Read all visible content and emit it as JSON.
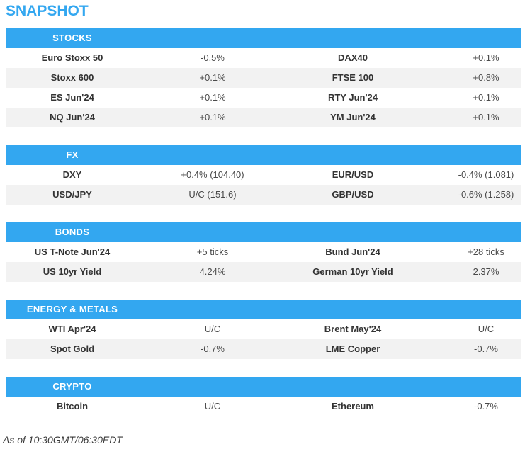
{
  "title": "SNAPSHOT",
  "footer": "As of 10:30GMT/06:30EDT",
  "colors": {
    "accent": "#33a7f0",
    "row_alt": "#f2f2f2",
    "header_text": "#ffffff",
    "label_text": "#333333",
    "value_text": "#4a4a4a"
  },
  "sections": [
    {
      "name": "STOCKS",
      "rows": [
        [
          "Euro Stoxx 50",
          "-0.5%",
          "DAX40",
          "+0.1%"
        ],
        [
          "Stoxx 600",
          "+0.1%",
          "FTSE 100",
          "+0.8%"
        ],
        [
          "ES Jun'24",
          "+0.1%",
          "RTY Jun'24",
          "+0.1%"
        ],
        [
          "NQ Jun'24",
          "+0.1%",
          "YM Jun'24",
          "+0.1%"
        ]
      ]
    },
    {
      "name": "FX",
      "rows": [
        [
          "DXY",
          "+0.4% (104.40)",
          "EUR/USD",
          "-0.4% (1.081)"
        ],
        [
          "USD/JPY",
          "U/C (151.6)",
          "GBP/USD",
          "-0.6% (1.258)"
        ]
      ]
    },
    {
      "name": "BONDS",
      "rows": [
        [
          "US T-Note Jun'24",
          "+5 ticks",
          "Bund Jun'24",
          "+28 ticks"
        ],
        [
          "US 10yr Yield",
          "4.24%",
          "German 10yr Yield",
          "2.37%"
        ]
      ]
    },
    {
      "name": "ENERGY & METALS",
      "rows": [
        [
          "WTI Apr'24",
          "U/C",
          "Brent May'24",
          "U/C"
        ],
        [
          "Spot Gold",
          "-0.7%",
          "LME Copper",
          "-0.7%"
        ]
      ]
    },
    {
      "name": "CRYPTO",
      "rows": [
        [
          "Bitcoin",
          "U/C",
          "Ethereum",
          "-0.7%"
        ]
      ]
    }
  ]
}
